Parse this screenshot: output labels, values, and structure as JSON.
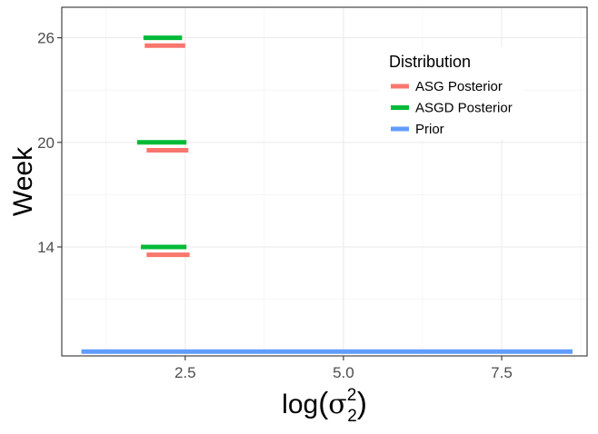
{
  "chart_data": {
    "type": "interval",
    "xlabel": "log(σ₂²)",
    "ylabel": "Week",
    "xlim": [
      0.55,
      8.85
    ],
    "ylim": [
      7.75,
      27.75
    ],
    "x_ticks": [
      {
        "value": 2.5,
        "label": "2.5"
      },
      {
        "value": 5.0,
        "label": "5.0"
      },
      {
        "value": 7.5,
        "label": "7.5"
      }
    ],
    "y_ticks": [
      {
        "value": 14,
        "label": "14"
      },
      {
        "value": 20,
        "label": "20"
      },
      {
        "value": 26,
        "label": "26"
      }
    ],
    "y_minor": [
      11,
      17,
      23
    ],
    "grid": true,
    "legend": {
      "title": "Distribution",
      "position": "top-right",
      "entries": [
        {
          "name": "ASG Posterior",
          "color": "#F8766D"
        },
        {
          "name": "ASGD Posterior",
          "color": "#00BA38"
        },
        {
          "name": "Prior",
          "color": "#619CFF"
        }
      ]
    },
    "series": [
      {
        "name": "ASG Posterior",
        "color": "#F8766D",
        "intervals": [
          {
            "week": 26,
            "low": 1.86,
            "high": 2.5
          },
          {
            "week": 20,
            "low": 1.89,
            "high": 2.55
          },
          {
            "week": 14,
            "low": 1.89,
            "high": 2.57
          }
        ]
      },
      {
        "name": "ASGD Posterior",
        "color": "#00BA38",
        "intervals": [
          {
            "week": 26,
            "low": 1.84,
            "high": 2.45
          },
          {
            "week": 20,
            "low": 1.74,
            "high": 2.52
          },
          {
            "week": 14,
            "low": 1.8,
            "high": 2.52
          }
        ]
      },
      {
        "name": "Prior",
        "color": "#619CFF",
        "intervals": [
          {
            "week": 8,
            "low": 0.86,
            "high": 8.62
          }
        ]
      }
    ]
  }
}
